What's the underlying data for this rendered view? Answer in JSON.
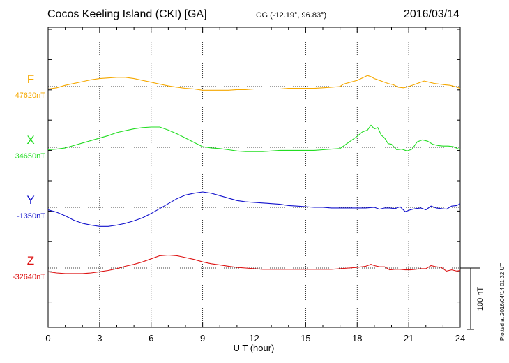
{
  "header": {
    "station": "Cocos Keeling Island (CKI)  [GA]",
    "coords": "GG (-12.19°,  96.83°)",
    "date": "2016/03/14"
  },
  "plot_stamp": "Plotted at 2016/04/14 01:32 UT",
  "scale_bar": {
    "label": "100 nT",
    "nT": 100
  },
  "chart_data": {
    "type": "line",
    "title": "",
    "xlabel": "U T (hour)",
    "ylabel": "",
    "xlim": [
      0,
      24
    ],
    "xticks": [
      "0",
      "3",
      "6",
      "9",
      "12",
      "15",
      "18",
      "21",
      "24"
    ],
    "grid": true,
    "series": [
      {
        "name": "F",
        "baseline_label": "47620nT",
        "color": "#f5a800",
        "x": [
          0,
          0.5,
          1,
          1.5,
          2,
          2.5,
          3,
          3.5,
          4,
          4.5,
          5,
          5.5,
          6,
          6.5,
          7,
          7.5,
          8,
          8.5,
          9,
          9.5,
          10,
          10.5,
          11,
          11.5,
          12,
          12.5,
          13,
          13.5,
          14,
          14.5,
          15,
          15.5,
          16,
          16.5,
          17,
          17.2,
          17.6,
          18,
          18.3,
          18.6,
          18.8,
          19,
          19.2,
          19.5,
          19.8,
          20.1,
          20.4,
          20.7,
          21,
          21.3,
          21.6,
          21.9,
          22.2,
          22.5,
          22.8,
          23.1,
          23.4,
          23.7,
          24
        ],
        "values": [
          -4,
          -2,
          2,
          5,
          8,
          11,
          13,
          14,
          15,
          15,
          13,
          10,
          7,
          4,
          1,
          -1,
          -3,
          -4,
          -6,
          -6,
          -6,
          -6,
          -5,
          -5,
          -4,
          -4,
          -4,
          -4,
          -3,
          -3,
          -3,
          -3,
          -2,
          -1,
          0,
          4,
          7,
          10,
          14,
          18,
          16,
          13,
          11,
          8,
          5,
          3,
          -1,
          -2,
          0,
          3,
          6,
          9,
          7,
          5,
          4,
          3,
          2,
          0,
          -3
        ]
      },
      {
        "name": "X",
        "baseline_label": "34650nT",
        "color": "#22dd22",
        "x": [
          0,
          0.5,
          1,
          1.5,
          2,
          2.5,
          3,
          3.5,
          4,
          4.5,
          5,
          5.5,
          6,
          6.5,
          7,
          7.5,
          8,
          8.5,
          9,
          9.5,
          10,
          10.5,
          11,
          11.5,
          12,
          12.5,
          13,
          13.5,
          14,
          14.5,
          15,
          15.5,
          16,
          16.5,
          17,
          17.3,
          17.6,
          18,
          18.3,
          18.6,
          18.8,
          19,
          19.2,
          19.4,
          19.6,
          19.8,
          20,
          20.3,
          20.6,
          20.9,
          21.2,
          21.5,
          21.8,
          22.1,
          22.4,
          22.7,
          23,
          23.3,
          23.6,
          24
        ],
        "values": [
          -4,
          -3,
          -1,
          3,
          7,
          11,
          15,
          19,
          24,
          27,
          30,
          32,
          33,
          33,
          28,
          22,
          15,
          8,
          1,
          -1,
          -2,
          -4,
          -6,
          -7,
          -7,
          -7,
          -6,
          -5,
          -5,
          -5,
          -5,
          -5,
          -4,
          -3,
          -2,
          4,
          10,
          18,
          25,
          28,
          36,
          30,
          32,
          20,
          15,
          6,
          5,
          -4,
          -3,
          -6,
          -3,
          9,
          12,
          10,
          5,
          3,
          2,
          2,
          1,
          -4
        ]
      },
      {
        "name": "Y",
        "baseline_label": "-1350nT",
        "color": "#1010cc",
        "x": [
          0,
          0.5,
          1,
          1.5,
          2,
          2.5,
          3,
          3.5,
          4,
          4.5,
          5,
          5.5,
          6,
          6.5,
          7,
          7.5,
          8,
          8.5,
          9,
          9.5,
          10,
          10.5,
          11,
          11.5,
          12,
          12.5,
          13,
          13.5,
          14,
          14.5,
          15,
          15.5,
          16,
          16.5,
          17,
          17.5,
          18,
          18.5,
          19,
          19.3,
          19.6,
          19.9,
          20.2,
          20.5,
          20.8,
          21.1,
          21.4,
          21.7,
          22,
          22.3,
          22.6,
          22.9,
          23.2,
          23.5,
          23.8,
          24
        ],
        "values": [
          -4,
          -8,
          -14,
          -21,
          -26,
          -29,
          -31,
          -31,
          -29,
          -26,
          -22,
          -17,
          -10,
          -2,
          6,
          14,
          20,
          23,
          25,
          23,
          19,
          15,
          11,
          9,
          8,
          7,
          6,
          5,
          3,
          2,
          1,
          0,
          0,
          -1,
          -1,
          -1,
          -1,
          -1,
          0,
          -3,
          -1,
          -1,
          -2,
          1,
          -7,
          -4,
          -2,
          -1,
          -4,
          2,
          -1,
          -2,
          -3,
          2,
          3,
          6
        ]
      },
      {
        "name": "Z",
        "baseline_label": "-32640nT",
        "color": "#dd1111",
        "x": [
          0,
          0.5,
          1,
          1.5,
          2,
          2.5,
          3,
          3.5,
          4,
          4.5,
          5,
          5.5,
          6,
          6.5,
          7,
          7.5,
          8,
          8.5,
          9,
          9.5,
          10,
          10.5,
          11,
          11.5,
          12,
          12.5,
          13,
          13.5,
          14,
          14.5,
          15,
          15.5,
          16,
          16.5,
          17,
          17.5,
          18,
          18.5,
          18.8,
          19,
          19.3,
          19.6,
          19.9,
          20.2,
          20.5,
          20.8,
          21.1,
          21.4,
          21.7,
          22,
          22.3,
          22.6,
          22.9,
          23.2,
          23.5,
          23.8,
          24
        ],
        "values": [
          -6,
          -8,
          -9,
          -9,
          -9,
          -8,
          -6,
          -4,
          -1,
          3,
          6,
          10,
          15,
          20,
          21,
          20,
          17,
          14,
          10,
          7,
          5,
          3,
          1,
          0,
          -1,
          -2,
          -2,
          -2,
          -2,
          -2,
          -2,
          -2,
          -2,
          -2,
          -1,
          0,
          1,
          3,
          6,
          4,
          2,
          2,
          -3,
          -2,
          -2,
          -3,
          -3,
          -2,
          -1,
          -1,
          4,
          2,
          1,
          -5,
          -3,
          -5,
          -4
        ]
      }
    ]
  }
}
